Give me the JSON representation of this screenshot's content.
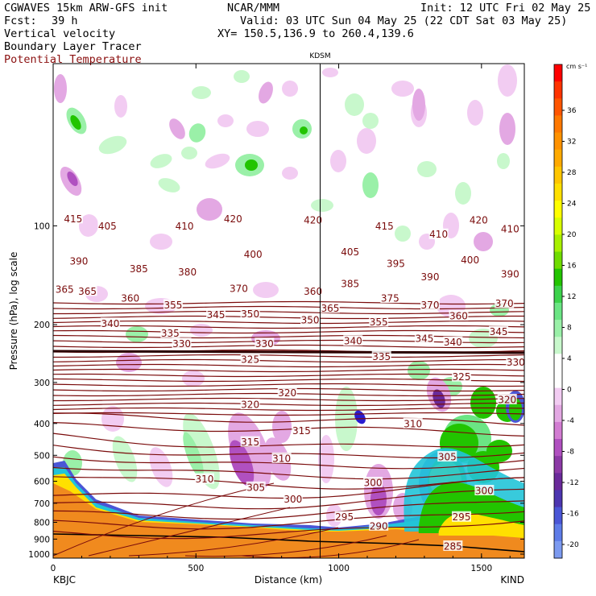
{
  "header": {
    "title": "CGWAVES 15km ARW-GFS init",
    "org": "NCAR/MMM",
    "init": "Init: 12 UTC Fri 02 May 25",
    "fcst_label": "Fcst:",
    "fcst_value": "39 h",
    "valid": "Valid: 03 UTC Sun 04 May 25 (22 CDT Sat 03 May 25)",
    "field1": "Vertical velocity",
    "xy": "XY= 150.5,136.9 to 260.4,139.6",
    "field2": "Boundary Layer Tracer",
    "field3": "Potential Temperature",
    "station_marker": "KDSM"
  },
  "colors": {
    "theta_contour": "#7a0b0b",
    "terrain": "#f08a1e",
    "plot_border": "#000000"
  },
  "chart_data": {
    "type": "cross-section",
    "xlabel": "Distance (km)",
    "ylabel": "Pressure (hPa), log scale",
    "x_range": [
      0,
      1650
    ],
    "x_ticks": [
      0,
      500,
      1000,
      1500
    ],
    "x_tick_labels": [
      "0",
      "500",
      "1000",
      "1500"
    ],
    "y_ticks": [
      100,
      200,
      300,
      400,
      500,
      600,
      700,
      800,
      900,
      1000
    ],
    "y_tick_labels": [
      "100",
      "200",
      "300",
      "400",
      "500",
      "600",
      "700",
      "800",
      "900",
      "1000"
    ],
    "y_scale": "log",
    "endpoints": {
      "left": "KBJC",
      "right": "KIND"
    },
    "marker": {
      "name": "KDSM",
      "x": 935
    },
    "colorbar": {
      "unit": "cm s⁻¹",
      "tick_labels": [
        "36",
        "32",
        "28",
        "24",
        "20",
        "16",
        "12",
        "8",
        "4",
        "0",
        "-4",
        "-8",
        "-12",
        "-16",
        "-20"
      ],
      "colors": [
        "#ff0000",
        "#ff3300",
        "#ff5500",
        "#ff7800",
        "#ff9200",
        "#ffaa00",
        "#ffc600",
        "#ffe000",
        "#ffff00",
        "#d8ff00",
        "#a8f000",
        "#6fdc00",
        "#22c400",
        "#3cd24b",
        "#6be584",
        "#9af0a8",
        "#c8f8cc",
        "#ffffff",
        "#ffffff",
        "#f2ccf2",
        "#e3a8e3",
        "#d27cd2",
        "#b050c0",
        "#8c3aa6",
        "#6a2a9a",
        "#4c36b0",
        "#4a56d6",
        "#5e7ce8",
        "#7c9af0"
      ]
    },
    "theta_labels": [
      {
        "x": 70,
        "p": 95,
        "v": "415"
      },
      {
        "x": 190,
        "p": 100,
        "v": "405"
      },
      {
        "x": 460,
        "p": 100,
        "v": "410"
      },
      {
        "x": 630,
        "p": 95,
        "v": "420"
      },
      {
        "x": 910,
        "p": 96,
        "v": "420"
      },
      {
        "x": 1160,
        "p": 100,
        "v": "415"
      },
      {
        "x": 1350,
        "p": 106,
        "v": "410"
      },
      {
        "x": 1490,
        "p": 96,
        "v": "420"
      },
      {
        "x": 1600,
        "p": 102,
        "v": "410"
      },
      {
        "x": 90,
        "p": 128,
        "v": "390"
      },
      {
        "x": 300,
        "p": 135,
        "v": "385"
      },
      {
        "x": 470,
        "p": 138,
        "v": "380"
      },
      {
        "x": 700,
        "p": 122,
        "v": "400"
      },
      {
        "x": 1040,
        "p": 120,
        "v": "405"
      },
      {
        "x": 1200,
        "p": 130,
        "v": "395"
      },
      {
        "x": 1460,
        "p": 127,
        "v": "400"
      },
      {
        "x": 1320,
        "p": 143,
        "v": "390"
      },
      {
        "x": 1600,
        "p": 140,
        "v": "390"
      },
      {
        "x": 1040,
        "p": 150,
        "v": "385"
      },
      {
        "x": 40,
        "p": 156,
        "v": "365"
      },
      {
        "x": 120,
        "p": 158,
        "v": "365"
      },
      {
        "x": 270,
        "p": 166,
        "v": "360"
      },
      {
        "x": 420,
        "p": 174,
        "v": "355"
      },
      {
        "x": 650,
        "p": 155,
        "v": "370"
      },
      {
        "x": 910,
        "p": 158,
        "v": "360"
      },
      {
        "x": 1180,
        "p": 166,
        "v": "375"
      },
      {
        "x": 1320,
        "p": 174,
        "v": "370"
      },
      {
        "x": 1580,
        "p": 172,
        "v": "370"
      },
      {
        "x": 570,
        "p": 186,
        "v": "345"
      },
      {
        "x": 690,
        "p": 185,
        "v": "350"
      },
      {
        "x": 970,
        "p": 178,
        "v": "365"
      },
      {
        "x": 200,
        "p": 198,
        "v": "340"
      },
      {
        "x": 900,
        "p": 193,
        "v": "350"
      },
      {
        "x": 1140,
        "p": 196,
        "v": "355"
      },
      {
        "x": 1420,
        "p": 188,
        "v": "360"
      },
      {
        "x": 410,
        "p": 212,
        "v": "335"
      },
      {
        "x": 1050,
        "p": 224,
        "v": "340"
      },
      {
        "x": 1300,
        "p": 220,
        "v": "345"
      },
      {
        "x": 1400,
        "p": 226,
        "v": "340"
      },
      {
        "x": 1560,
        "p": 210,
        "v": "345"
      },
      {
        "x": 450,
        "p": 228,
        "v": "330"
      },
      {
        "x": 740,
        "p": 228,
        "v": "330"
      },
      {
        "x": 690,
        "p": 255,
        "v": "325"
      },
      {
        "x": 1150,
        "p": 250,
        "v": "335"
      },
      {
        "x": 1430,
        "p": 288,
        "v": "325"
      },
      {
        "x": 1620,
        "p": 260,
        "v": "330"
      },
      {
        "x": 820,
        "p": 322,
        "v": "320"
      },
      {
        "x": 690,
        "p": 350,
        "v": "320"
      },
      {
        "x": 1590,
        "p": 338,
        "v": "320"
      },
      {
        "x": 870,
        "p": 420,
        "v": "315"
      },
      {
        "x": 1260,
        "p": 400,
        "v": "310"
      },
      {
        "x": 690,
        "p": 455,
        "v": "315"
      },
      {
        "x": 800,
        "p": 510,
        "v": "310"
      },
      {
        "x": 1380,
        "p": 505,
        "v": "305"
      },
      {
        "x": 530,
        "p": 590,
        "v": "310"
      },
      {
        "x": 710,
        "p": 625,
        "v": "305"
      },
      {
        "x": 840,
        "p": 680,
        "v": "300"
      },
      {
        "x": 1120,
        "p": 605,
        "v": "300"
      },
      {
        "x": 1510,
        "p": 640,
        "v": "300"
      },
      {
        "x": 1020,
        "p": 770,
        "v": "295"
      },
      {
        "x": 1430,
        "p": 770,
        "v": "295"
      },
      {
        "x": 1140,
        "p": 820,
        "v": "290"
      },
      {
        "x": 1400,
        "p": 945,
        "v": "285"
      }
    ]
  }
}
